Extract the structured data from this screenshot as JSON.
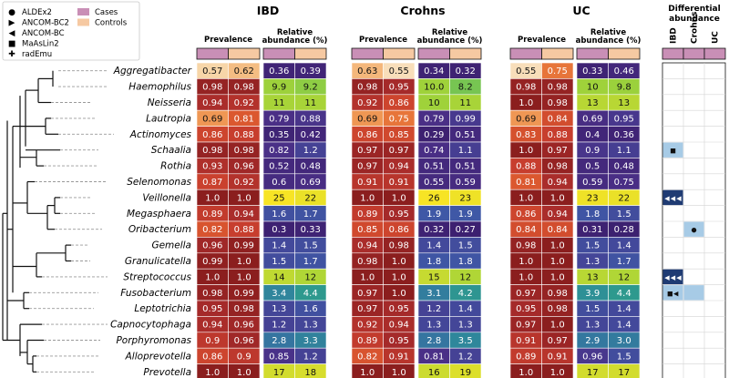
{
  "chart_data": {
    "type": "heatmap",
    "taxa": [
      "Aggregatibacter",
      "Haemophilus",
      "Neisseria",
      "Lautropia",
      "Actinomyces",
      "Schaalia",
      "Rothia",
      "Selenomonas",
      "Veillonella",
      "Megasphaera",
      "Oribacterium",
      "Gemella",
      "Granulicatella",
      "Streptococcus",
      "Fusobacterium",
      "Leptotrichia",
      "Capnocytophaga",
      "Porphyromonas",
      "Alloprevotella",
      "Prevotella"
    ],
    "groups": [
      {
        "title": "IBD",
        "prevalence_label": "Prevalence",
        "abundance_label": [
          "Relative",
          "abundance (%)"
        ],
        "prevalence": [
          [
            "0.57",
            "0.62"
          ],
          [
            "0.98",
            "0.98"
          ],
          [
            "0.94",
            "0.92"
          ],
          [
            "0.69",
            "0.81"
          ],
          [
            "0.86",
            "0.88"
          ],
          [
            "0.98",
            "0.98"
          ],
          [
            "0.93",
            "0.96"
          ],
          [
            "0.87",
            "0.92"
          ],
          [
            "1.0",
            "1.0"
          ],
          [
            "0.89",
            "0.94"
          ],
          [
            "0.82",
            "0.88"
          ],
          [
            "0.96",
            "0.99"
          ],
          [
            "0.99",
            "1.0"
          ],
          [
            "1.0",
            "1.0"
          ],
          [
            "0.98",
            "0.99"
          ],
          [
            "0.95",
            "0.98"
          ],
          [
            "0.94",
            "0.96"
          ],
          [
            "0.9",
            "0.96"
          ],
          [
            "0.86",
            "0.9"
          ],
          [
            "1.0",
            "1.0"
          ]
        ],
        "abundance": [
          [
            "0.36",
            "0.39"
          ],
          [
            "9.9",
            "9.2"
          ],
          [
            "11",
            "11"
          ],
          [
            "0.79",
            "0.88"
          ],
          [
            "0.35",
            "0.42"
          ],
          [
            "0.82",
            "1.2"
          ],
          [
            "0.52",
            "0.48"
          ],
          [
            "0.6",
            "0.69"
          ],
          [
            "25",
            "22"
          ],
          [
            "1.6",
            "1.7"
          ],
          [
            "0.3",
            "0.33"
          ],
          [
            "1.4",
            "1.5"
          ],
          [
            "1.5",
            "1.7"
          ],
          [
            "14",
            "12"
          ],
          [
            "3.4",
            "4.4"
          ],
          [
            "1.3",
            "1.6"
          ],
          [
            "1.2",
            "1.3"
          ],
          [
            "2.8",
            "3.3"
          ],
          [
            "0.85",
            "1.2"
          ],
          [
            "17",
            "18"
          ]
        ]
      },
      {
        "title": "Crohns",
        "prevalence_label": "Prevalence",
        "abundance_label": [
          "Relative",
          "abundance (%)"
        ],
        "prevalence": [
          [
            "0.63",
            "0.55"
          ],
          [
            "0.98",
            "0.95"
          ],
          [
            "0.92",
            "0.86"
          ],
          [
            "0.69",
            "0.75"
          ],
          [
            "0.86",
            "0.85"
          ],
          [
            "0.97",
            "0.97"
          ],
          [
            "0.97",
            "0.94"
          ],
          [
            "0.91",
            "0.91"
          ],
          [
            "1.0",
            "1.0"
          ],
          [
            "0.89",
            "0.95"
          ],
          [
            "0.85",
            "0.86"
          ],
          [
            "0.94",
            "0.98"
          ],
          [
            "0.98",
            "1.0"
          ],
          [
            "1.0",
            "1.0"
          ],
          [
            "0.97",
            "1.0"
          ],
          [
            "0.97",
            "0.95"
          ],
          [
            "0.92",
            "0.94"
          ],
          [
            "0.89",
            "0.95"
          ],
          [
            "0.82",
            "0.91"
          ],
          [
            "1.0",
            "1.0"
          ]
        ],
        "abundance": [
          [
            "0.34",
            "0.32"
          ],
          [
            "10.0",
            "8.2"
          ],
          [
            "10",
            "11"
          ],
          [
            "0.79",
            "0.99"
          ],
          [
            "0.29",
            "0.51"
          ],
          [
            "0.74",
            "1.1"
          ],
          [
            "0.51",
            "0.51"
          ],
          [
            "0.55",
            "0.59"
          ],
          [
            "26",
            "23"
          ],
          [
            "1.9",
            "1.9"
          ],
          [
            "0.32",
            "0.27"
          ],
          [
            "1.4",
            "1.5"
          ],
          [
            "1.8",
            "1.8"
          ],
          [
            "15",
            "12"
          ],
          [
            "3.1",
            "4.2"
          ],
          [
            "1.2",
            "1.4"
          ],
          [
            "1.3",
            "1.3"
          ],
          [
            "2.8",
            "3.5"
          ],
          [
            "0.81",
            "1.2"
          ],
          [
            "16",
            "19"
          ]
        ]
      },
      {
        "title": "UC",
        "prevalence_label": "Prevalence",
        "abundance_label": [
          "Relative",
          "abundance (%)"
        ],
        "prevalence": [
          [
            "0.55",
            "0.75"
          ],
          [
            "0.98",
            "0.98"
          ],
          [
            "1.0",
            "0.98"
          ],
          [
            "0.69",
            "0.84"
          ],
          [
            "0.83",
            "0.88"
          ],
          [
            "1.0",
            "0.97"
          ],
          [
            "0.88",
            "0.98"
          ],
          [
            "0.81",
            "0.94"
          ],
          [
            "1.0",
            "1.0"
          ],
          [
            "0.86",
            "0.94"
          ],
          [
            "0.84",
            "0.84"
          ],
          [
            "0.98",
            "1.0"
          ],
          [
            "1.0",
            "1.0"
          ],
          [
            "1.0",
            "1.0"
          ],
          [
            "0.97",
            "0.98"
          ],
          [
            "0.95",
            "0.98"
          ],
          [
            "0.97",
            "1.0"
          ],
          [
            "0.91",
            "0.97"
          ],
          [
            "0.89",
            "0.91"
          ],
          [
            "1.0",
            "1.0"
          ]
        ],
        "abundance": [
          [
            "0.33",
            "0.46"
          ],
          [
            "10",
            "9.8"
          ],
          [
            "13",
            "13"
          ],
          [
            "0.69",
            "0.95"
          ],
          [
            "0.4",
            "0.36"
          ],
          [
            "0.9",
            "1.1"
          ],
          [
            "0.5",
            "0.48"
          ],
          [
            "0.59",
            "0.75"
          ],
          [
            "23",
            "22"
          ],
          [
            "1.8",
            "1.5"
          ],
          [
            "0.31",
            "0.28"
          ],
          [
            "1.5",
            "1.4"
          ],
          [
            "1.3",
            "1.7"
          ],
          [
            "13",
            "12"
          ],
          [
            "3.9",
            "4.4"
          ],
          [
            "1.5",
            "1.4"
          ],
          [
            "1.3",
            "1.4"
          ],
          [
            "2.9",
            "3.0"
          ],
          [
            "0.96",
            "1.5"
          ],
          [
            "17",
            "17"
          ]
        ]
      }
    ],
    "legend": {
      "markers": [
        {
          "symbol": "●",
          "label": "ALDEx2"
        },
        {
          "symbol": "▶",
          "label": "ANCOM-BC2"
        },
        {
          "symbol": "◀",
          "label": "ANCOM-BC"
        },
        {
          "symbol": "■",
          "label": "MaAsLin2"
        },
        {
          "symbol": "✚",
          "label": "radEmu"
        }
      ],
      "patches": [
        {
          "label": "Cases",
          "color": "#c98fb6"
        },
        {
          "label": "Controls",
          "color": "#f6c9a2"
        }
      ]
    },
    "differential_abundance": {
      "title": [
        "Differential",
        "abundance"
      ],
      "columns": [
        "IBD",
        "Crohns",
        "UC"
      ],
      "highlights": [
        {
          "taxon": "Schaalia",
          "col": "IBD",
          "shade": "light",
          "markers": [
            "■"
          ]
        },
        {
          "taxon": "Veillonella",
          "col": "IBD",
          "shade": "dark",
          "markers": [
            "◀",
            "◀",
            "◀"
          ]
        },
        {
          "taxon": "Oribacterium",
          "col": "Crohns",
          "shade": "light",
          "markers": [
            "●"
          ]
        },
        {
          "taxon": "Streptococcus",
          "col": "IBD",
          "shade": "dark",
          "markers": [
            "◀",
            "◀",
            "◀"
          ]
        },
        {
          "taxon": "Fusobacterium",
          "col": "IBD",
          "shade": "light",
          "markers": [
            "■",
            "◀"
          ]
        },
        {
          "taxon": "Fusobacterium",
          "col": "Crohns",
          "shade": "light",
          "markers": []
        }
      ]
    },
    "colors": {
      "da_light": "#a7cbe6",
      "da_dark": "#1f3b73",
      "header_cases": "#c98fb6",
      "header_controls": "#f6c9a2"
    }
  }
}
